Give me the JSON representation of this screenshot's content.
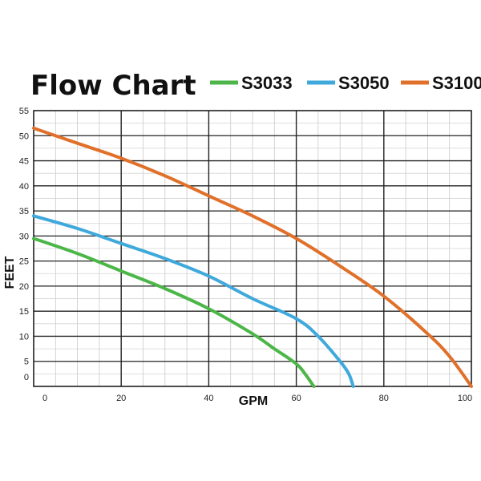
{
  "chart_data": {
    "type": "line",
    "title": "Flow Chart",
    "xlabel": "GPM",
    "ylabel": "FEET",
    "xlim": [
      0,
      100
    ],
    "ylim": [
      0,
      55
    ],
    "x_ticks": [
      "0",
      "20",
      "40",
      "60",
      "80",
      "100"
    ],
    "y_ticks": [
      "0",
      "5",
      "10",
      "15",
      "20",
      "25",
      "30",
      "35",
      "40",
      "45",
      "50",
      "55"
    ],
    "grid": true,
    "legend_position": "top-right",
    "series": [
      {
        "name": "S3033",
        "color": "#4cb648",
        "x": [
          0,
          10,
          20,
          30,
          40,
          50,
          55,
          60,
          62,
          64
        ],
        "y": [
          29.5,
          26.5,
          23,
          19.5,
          15.5,
          10.5,
          7.5,
          4.5,
          2.5,
          0
        ]
      },
      {
        "name": "S3050",
        "color": "#3fa9dc",
        "x": [
          0,
          10,
          20,
          30,
          40,
          50,
          60,
          65,
          70,
          72,
          73
        ],
        "y": [
          34,
          31.5,
          28.5,
          25.5,
          22,
          17.5,
          13.5,
          10,
          5,
          2.5,
          0
        ]
      },
      {
        "name": "S3100",
        "color": "#e0702a",
        "x": [
          0,
          10,
          20,
          30,
          40,
          50,
          60,
          70,
          80,
          90,
          95,
          100
        ],
        "y": [
          51.5,
          48.5,
          45.5,
          42,
          38,
          34,
          29.5,
          24,
          18,
          10.5,
          6,
          0
        ]
      }
    ]
  }
}
